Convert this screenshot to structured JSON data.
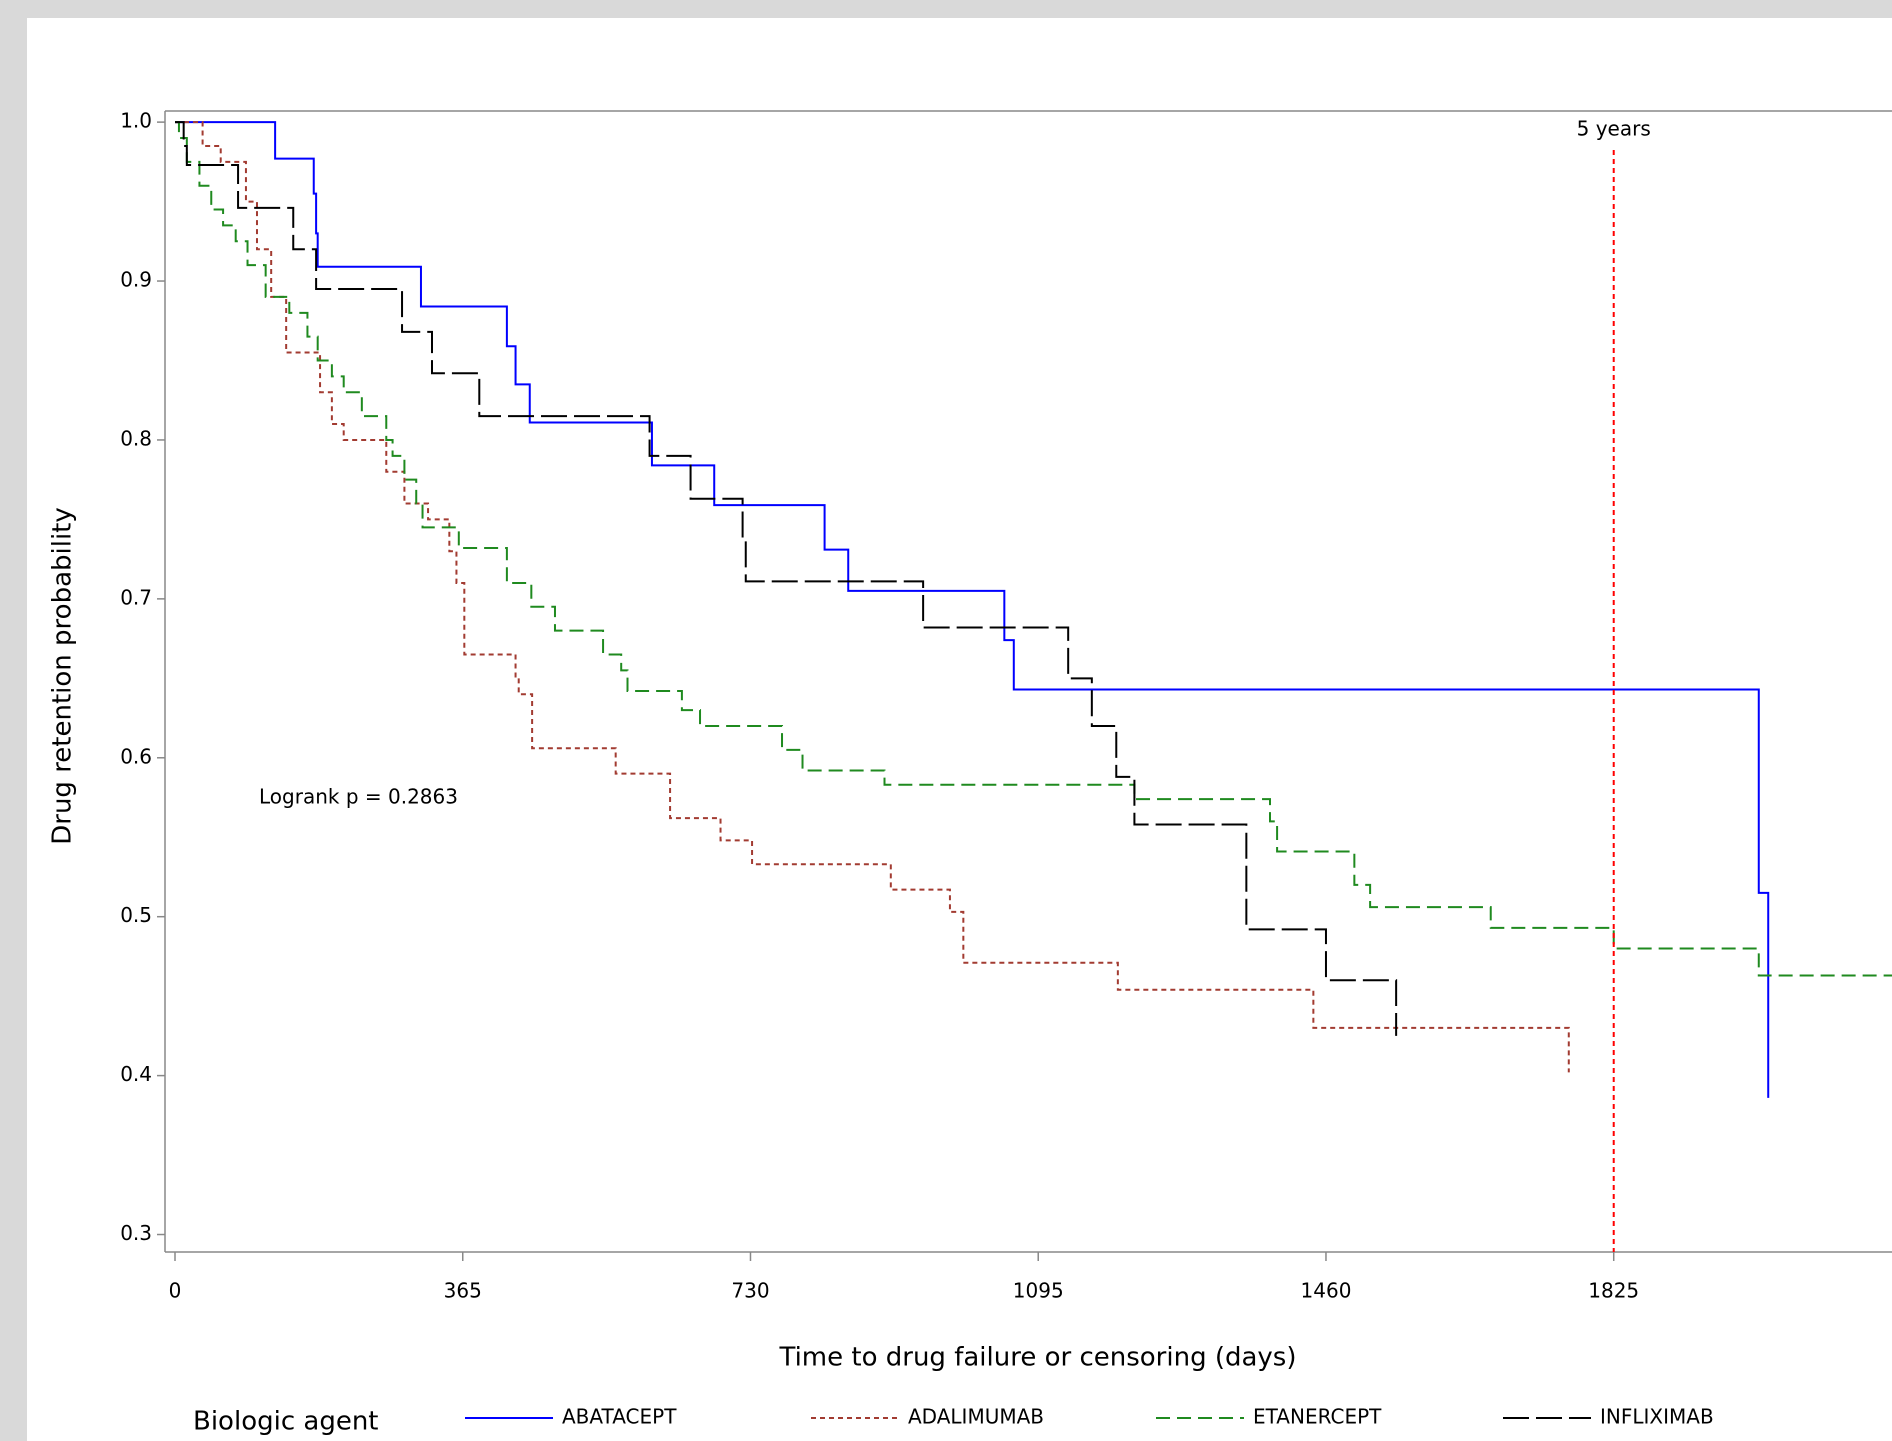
{
  "chart_data": {
    "type": "step",
    "x_label": "Time to drug failure or censoring (days)",
    "y_label": "Drug retention probability",
    "xlim": [
      0,
      2178
    ],
    "ylim": [
      0.289,
      1.007
    ],
    "xticks": [
      0,
      365,
      730,
      1095,
      1460,
      1825
    ],
    "yticks": [
      0.3,
      0.4,
      0.5,
      0.6,
      0.7,
      0.8,
      0.9,
      {
        "value": 1,
        "label": "1.0"
      }
    ],
    "annotation": "Logrank p = 0.2863",
    "reference_line": {
      "x": 1825,
      "label": "5 years",
      "color": "#ff0000"
    },
    "legend_title": "Biologic agent",
    "series": [
      {
        "name": "ABATACEPT",
        "color": "#0000ff",
        "line_style": "solid",
        "x": [
          0,
          127,
          176,
          179,
          181,
          312,
          421,
          432,
          450,
          605,
          684,
          824,
          854,
          1052,
          1064,
          2009,
          2021
        ],
        "values": [
          1,
          0.977,
          0.955,
          0.93,
          0.909,
          0.884,
          0.859,
          0.835,
          0.811,
          0.784,
          0.759,
          0.731,
          0.705,
          0.674,
          0.643,
          0.515,
          0.386
        ]
      },
      {
        "name": "ADALIMUMAB",
        "color": "#a23b31",
        "line_style": "dotted",
        "x": [
          0,
          35,
          58,
          90,
          104,
          122,
          141,
          184,
          199,
          214,
          268,
          291,
          321,
          348,
          357,
          367,
          432,
          436,
          453,
          559,
          628,
          692,
          732,
          908,
          983,
          1000,
          1196,
          1444,
          1768
        ],
        "values": [
          1,
          0.985,
          0.975,
          0.95,
          0.92,
          0.89,
          0.855,
          0.83,
          0.81,
          0.8,
          0.78,
          0.76,
          0.75,
          0.73,
          0.71,
          0.665,
          0.65,
          0.64,
          0.606,
          0.59,
          0.562,
          0.548,
          0.533,
          0.517,
          0.503,
          0.471,
          0.454,
          0.43,
          0.402
        ]
      },
      {
        "name": "ETANERCEPT",
        "color": "#1f8a1f",
        "line_style": "dashed",
        "x": [
          0,
          5,
          15,
          31,
          46,
          61,
          77,
          92,
          115,
          145,
          168,
          181,
          199,
          214,
          237,
          268,
          276,
          291,
          306,
          314,
          360,
          421,
          452,
          482,
          543,
          566,
          574,
          643,
          666,
          770,
          796,
          900,
          1217,
          1389,
          1398,
          1496,
          1516,
          1669,
          1825,
          2009,
          2178
        ],
        "values": [
          1,
          0.99,
          0.975,
          0.96,
          0.945,
          0.935,
          0.925,
          0.91,
          0.89,
          0.88,
          0.865,
          0.85,
          0.84,
          0.83,
          0.815,
          0.8,
          0.79,
          0.775,
          0.76,
          0.745,
          0.732,
          0.71,
          0.695,
          0.68,
          0.665,
          0.655,
          0.642,
          0.63,
          0.62,
          0.605,
          0.592,
          0.583,
          0.574,
          0.56,
          0.541,
          0.52,
          0.506,
          0.493,
          0.48,
          0.463,
          0.463
        ]
      },
      {
        "name": "INFLIXIMAB",
        "color": "#000000",
        "line_style": "longdash",
        "x": [
          0,
          11,
          15,
          80,
          150,
          179,
          288,
          326,
          386,
          602,
          654,
          720,
          724,
          949,
          1133,
          1163,
          1194,
          1217,
          1359,
          1460,
          1549
        ],
        "values": [
          1,
          0.985,
          0.973,
          0.946,
          0.92,
          0.895,
          0.868,
          0.842,
          0.815,
          0.79,
          0.763,
          0.737,
          0.711,
          0.682,
          0.65,
          0.62,
          0.588,
          0.558,
          0.492,
          0.46,
          0.425
        ]
      }
    ]
  }
}
